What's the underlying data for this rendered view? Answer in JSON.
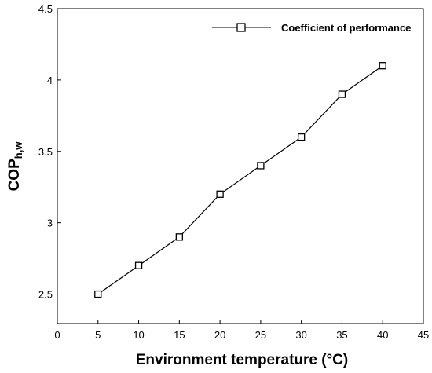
{
  "chart_data": {
    "type": "line",
    "title": "",
    "xlabel": "Environment temperature (°C)",
    "ylabel": "COP",
    "ylabel_subscript": "h,w",
    "xlim": [
      0,
      45
    ],
    "ylim": [
      2.5,
      4.5
    ],
    "x_ticks": [
      "0",
      "5",
      "10",
      "15",
      "20",
      "25",
      "30",
      "35",
      "40",
      "45"
    ],
    "y_ticks": [
      "2.5",
      "3",
      "3.5",
      "4",
      "4.5"
    ],
    "grid": false,
    "legend_position": "top-right",
    "series": [
      {
        "name": "Coefficient of performance",
        "marker": "square",
        "color": "#000000",
        "x": [
          5,
          10,
          15,
          20,
          25,
          30,
          35,
          40
        ],
        "y": [
          2.5,
          2.7,
          2.9,
          3.2,
          3.4,
          3.6,
          3.9,
          4.1
        ]
      }
    ]
  }
}
